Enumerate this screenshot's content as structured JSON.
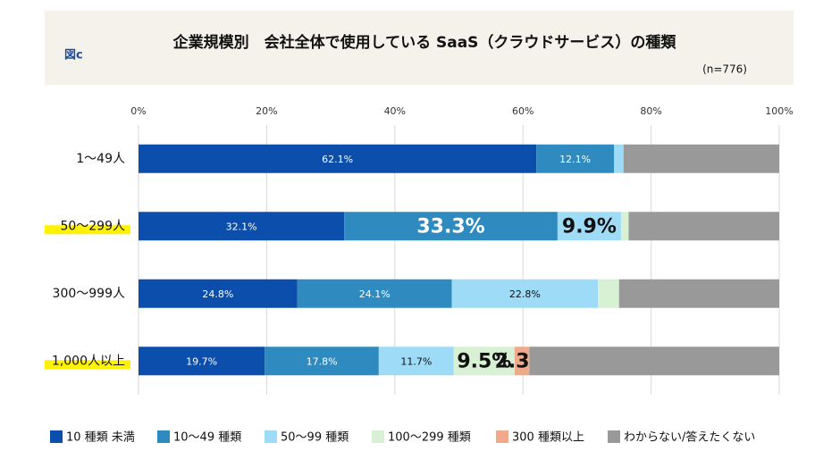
{
  "chart_data": {
    "type": "stacked-bar-horizontal",
    "figure_label": "図c",
    "title": "企業規模別　会社全体で使用している SaaS（クラウドサービス）の種類",
    "subtitle": "(n=776)",
    "categories": [
      "1～49人",
      "50～299人",
      "300～999人",
      "1,000人以上"
    ],
    "highlighted_categories": [
      false,
      true,
      false,
      true
    ],
    "xlim": [
      0,
      100
    ],
    "xticks": [
      {
        "value": 0,
        "label": "0%"
      },
      {
        "value": 20,
        "label": "20%"
      },
      {
        "value": 40,
        "label": "40%"
      },
      {
        "value": 60,
        "label": "60%"
      },
      {
        "value": 80,
        "label": "80%"
      },
      {
        "value": 100,
        "label": "100%"
      }
    ],
    "grid": true,
    "legend": "bottom",
    "series": [
      {
        "name": "10 種類 未満",
        "color": "#0b4eab",
        "values": [
          62.1,
          32.1,
          24.8,
          19.7
        ],
        "value_labels": [
          "62.1%",
          "32.1%",
          "24.8%",
          "19.7%"
        ],
        "emphasized_labels": [
          false,
          false,
          false,
          false
        ]
      },
      {
        "name": "10～49 種類",
        "color": "#2f8bbf",
        "values": [
          12.1,
          33.3,
          24.1,
          17.8
        ],
        "value_labels": [
          "12.1%",
          "33.3%",
          "24.1%",
          "17.8%"
        ],
        "emphasized_labels": [
          false,
          true,
          false,
          false
        ]
      },
      {
        "name": "50～99 種類",
        "color": "#9edbf6",
        "values": [
          1.5,
          9.9,
          22.8,
          11.7
        ],
        "value_labels": [
          null,
          "9.9%",
          "22.8%",
          "11.7%"
        ],
        "emphasized_labels": [
          false,
          true,
          false,
          false
        ]
      },
      {
        "name": "100～299 種類",
        "color": "#d8f0d3",
        "values": [
          0,
          1.2,
          3.3,
          9.5
        ],
        "value_labels": [
          null,
          null,
          null,
          "9.5%"
        ],
        "emphasized_labels": [
          false,
          false,
          false,
          true
        ]
      },
      {
        "name": "300 種類以上",
        "color": "#f1a98b",
        "values": [
          0,
          0,
          0,
          2.3
        ],
        "value_labels": [
          null,
          null,
          null,
          "2.3%"
        ],
        "emphasized_labels": [
          false,
          false,
          false,
          true
        ]
      },
      {
        "name": "わからない/答えたくない",
        "color": "#999999",
        "values": [
          24.3,
          23.5,
          25.0,
          39.0
        ]
      }
    ]
  }
}
